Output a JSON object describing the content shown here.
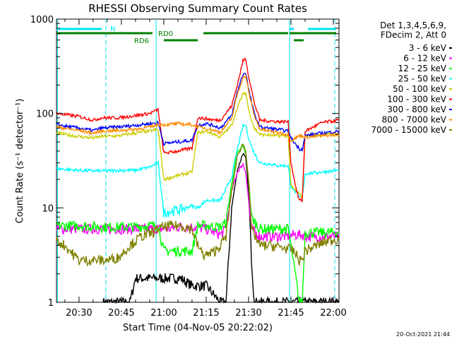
{
  "chart_data": {
    "type": "line",
    "title": "RHESSI Observing Summary Count Rates",
    "xlabel": "Start Time (04-Nov-05 20:22:02)",
    "ylabel": "Count Rate (s⁻¹ detector⁻¹)",
    "y_scale": "log",
    "ylim": [
      1,
      1000
    ],
    "xlim_minutes_after_2000": [
      22.03,
      122
    ],
    "x_ticks": [
      {
        "m": 30,
        "label": "20:30"
      },
      {
        "m": 45,
        "label": "20:45"
      },
      {
        "m": 60,
        "label": "21:00"
      },
      {
        "m": 75,
        "label": "21:15"
      },
      {
        "m": 90,
        "label": "21:30"
      },
      {
        "m": 105,
        "label": "21:45"
      },
      {
        "m": 120,
        "label": "22:00"
      }
    ],
    "y_ticks": [
      {
        "v": 1,
        "label": "1"
      },
      {
        "v": 10,
        "label": "10"
      },
      {
        "v": 100,
        "label": "100"
      },
      {
        "v": 1000,
        "label": "1000"
      }
    ],
    "legend_header": [
      "Det 1,3,4,5,6,9,",
      "FDecim 2, Att 0"
    ],
    "legend_placement": "right",
    "series": [
      {
        "name": "3 - 6 keV",
        "color": "#000000",
        "points": [
          [
            38.5,
            1
          ],
          [
            48,
            1
          ],
          [
            50,
            1.8
          ],
          [
            58,
            1.8
          ],
          [
            66,
            1.8
          ],
          [
            70,
            1.5
          ],
          [
            75,
            1.5
          ],
          [
            80,
            1
          ],
          [
            82,
            1
          ],
          [
            84,
            10
          ],
          [
            86,
            25
          ],
          [
            88,
            38
          ],
          [
            89,
            33
          ],
          [
            90,
            15
          ],
          [
            91,
            3
          ],
          [
            92,
            1
          ],
          [
            122,
            1
          ]
        ]
      },
      {
        "name": "6 - 12 keV",
        "color": "#ff00ff",
        "points": [
          [
            22,
            6
          ],
          [
            30,
            6
          ],
          [
            38,
            6
          ],
          [
            40,
            6
          ],
          [
            44,
            6
          ],
          [
            50,
            6
          ],
          [
            55,
            6
          ],
          [
            60,
            6
          ],
          [
            62,
            6
          ],
          [
            65,
            6.3
          ],
          [
            70,
            6.3
          ],
          [
            75,
            6
          ],
          [
            80,
            5.2
          ],
          [
            82,
            6
          ],
          [
            84,
            15
          ],
          [
            86,
            24
          ],
          [
            88,
            29
          ],
          [
            89,
            24
          ],
          [
            90,
            12
          ],
          [
            91,
            6
          ],
          [
            94,
            5
          ],
          [
            100,
            5
          ],
          [
            104,
            5
          ],
          [
            106,
            5.2
          ],
          [
            109,
            5.2
          ],
          [
            110,
            5
          ],
          [
            116,
            5
          ],
          [
            122,
            5
          ]
        ]
      },
      {
        "name": "12 - 25 keV",
        "color": "#00ff00",
        "points": [
          [
            22,
            6.5
          ],
          [
            30,
            6.5
          ],
          [
            38,
            6.3
          ],
          [
            44,
            6.3
          ],
          [
            50,
            6.3
          ],
          [
            55,
            6.5
          ],
          [
            58,
            6.5
          ],
          [
            60,
            3.5
          ],
          [
            64,
            3.5
          ],
          [
            70,
            3.5
          ],
          [
            72,
            6.5
          ],
          [
            75,
            6.5
          ],
          [
            80,
            6.3
          ],
          [
            82,
            7
          ],
          [
            84,
            18
          ],
          [
            86,
            38
          ],
          [
            88,
            45
          ],
          [
            89,
            38
          ],
          [
            90,
            20
          ],
          [
            91,
            8
          ],
          [
            94,
            6
          ],
          [
            100,
            6
          ],
          [
            104,
            6
          ],
          [
            105,
            4
          ],
          [
            108,
            1
          ],
          [
            109,
            1
          ],
          [
            110,
            5.5
          ],
          [
            116,
            5.5
          ],
          [
            122,
            5.5
          ]
        ]
      },
      {
        "name": "25 - 50 keV",
        "color": "#00ffff",
        "points": [
          [
            22,
            26
          ],
          [
            30,
            25
          ],
          [
            38,
            24.5
          ],
          [
            44,
            25
          ],
          [
            50,
            25
          ],
          [
            55,
            27
          ],
          [
            58,
            30
          ],
          [
            60,
            9
          ],
          [
            65,
            9.5
          ],
          [
            70,
            10.5
          ],
          [
            72,
            10
          ],
          [
            75,
            12
          ],
          [
            78,
            12
          ],
          [
            80,
            12
          ],
          [
            84,
            21
          ],
          [
            86,
            42
          ],
          [
            88,
            73
          ],
          [
            89,
            75
          ],
          [
            90,
            55
          ],
          [
            92,
            38
          ],
          [
            94,
            30
          ],
          [
            98,
            29
          ],
          [
            100,
            28
          ],
          [
            104,
            28
          ],
          [
            105,
            17
          ],
          [
            108,
            13
          ],
          [
            109,
            13
          ],
          [
            110,
            23
          ],
          [
            116,
            24
          ],
          [
            122,
            25
          ]
        ]
      },
      {
        "name": "50 - 100 keV",
        "color": "#cccc00",
        "points": [
          [
            22,
            62
          ],
          [
            30,
            57
          ],
          [
            35,
            55
          ],
          [
            38,
            57
          ],
          [
            44,
            58
          ],
          [
            50,
            62
          ],
          [
            55,
            65
          ],
          [
            58,
            68
          ],
          [
            60,
            20
          ],
          [
            65,
            22
          ],
          [
            70,
            24
          ],
          [
            72,
            62
          ],
          [
            75,
            65
          ],
          [
            78,
            60
          ],
          [
            80,
            56
          ],
          [
            84,
            75
          ],
          [
            86,
            115
          ],
          [
            88,
            160
          ],
          [
            89,
            165
          ],
          [
            90,
            110
          ],
          [
            92,
            70
          ],
          [
            94,
            60
          ],
          [
            100,
            58
          ],
          [
            104,
            58
          ],
          [
            105,
            17
          ],
          [
            108,
            14
          ],
          [
            109,
            13
          ],
          [
            110,
            58
          ],
          [
            116,
            60
          ],
          [
            122,
            60
          ]
        ]
      },
      {
        "name": "100 - 300 keV",
        "color": "#ff0000",
        "points": [
          [
            22,
            100
          ],
          [
            30,
            93
          ],
          [
            35,
            85
          ],
          [
            38,
            90
          ],
          [
            44,
            90
          ],
          [
            50,
            95
          ],
          [
            55,
            100
          ],
          [
            58,
            110
          ],
          [
            60,
            38
          ],
          [
            65,
            40
          ],
          [
            70,
            43
          ],
          [
            72,
            90
          ],
          [
            75,
            88
          ],
          [
            78,
            85
          ],
          [
            80,
            85
          ],
          [
            84,
            120
          ],
          [
            86,
            200
          ],
          [
            88,
            360
          ],
          [
            89,
            380
          ],
          [
            90,
            250
          ],
          [
            92,
            130
          ],
          [
            94,
            85
          ],
          [
            100,
            82
          ],
          [
            104,
            82
          ],
          [
            105,
            30
          ],
          [
            107,
            15
          ],
          [
            108,
            12
          ],
          [
            109,
            12
          ],
          [
            110,
            65
          ],
          [
            116,
            80
          ],
          [
            122,
            85
          ]
        ]
      },
      {
        "name": "300 - 800 keV",
        "color": "#0000ff",
        "points": [
          [
            22,
            76
          ],
          [
            30,
            70
          ],
          [
            35,
            66
          ],
          [
            38,
            70
          ],
          [
            44,
            72
          ],
          [
            50,
            75
          ],
          [
            55,
            78
          ],
          [
            58,
            80
          ],
          [
            60,
            48
          ],
          [
            65,
            50
          ],
          [
            70,
            52
          ],
          [
            72,
            75
          ],
          [
            75,
            78
          ],
          [
            78,
            74
          ],
          [
            80,
            70
          ],
          [
            84,
            95
          ],
          [
            86,
            170
          ],
          [
            88,
            260
          ],
          [
            89,
            270
          ],
          [
            90,
            180
          ],
          [
            92,
            100
          ],
          [
            94,
            72
          ],
          [
            100,
            68
          ],
          [
            104,
            65
          ],
          [
            105,
            55
          ],
          [
            108,
            42
          ],
          [
            109,
            42
          ],
          [
            110,
            58
          ],
          [
            116,
            62
          ],
          [
            122,
            65
          ]
        ]
      },
      {
        "name": "800 - 7000 keV",
        "color": "#ff8c00",
        "points": [
          [
            22,
            72
          ],
          [
            30,
            66
          ],
          [
            35,
            62
          ],
          [
            38,
            65
          ],
          [
            44,
            66
          ],
          [
            50,
            68
          ],
          [
            55,
            72
          ],
          [
            58,
            76
          ],
          [
            60,
            76
          ],
          [
            65,
            78
          ],
          [
            70,
            76
          ],
          [
            72,
            72
          ],
          [
            75,
            70
          ],
          [
            78,
            66
          ],
          [
            80,
            63
          ],
          [
            84,
            88
          ],
          [
            86,
            160
          ],
          [
            88,
            240
          ],
          [
            89,
            250
          ],
          [
            90,
            170
          ],
          [
            92,
            95
          ],
          [
            94,
            68
          ],
          [
            100,
            63
          ],
          [
            104,
            60
          ],
          [
            105,
            52
          ],
          [
            108,
            58
          ],
          [
            109,
            58
          ],
          [
            110,
            56
          ],
          [
            116,
            58
          ],
          [
            122,
            60
          ]
        ]
      },
      {
        "name": "7000 - 15000 keV",
        "color": "#808000",
        "points": [
          [
            22,
            4.5
          ],
          [
            25,
            4
          ],
          [
            28,
            3.2
          ],
          [
            30,
            2.8
          ],
          [
            35,
            2.8
          ],
          [
            40,
            2.8
          ],
          [
            44,
            3
          ],
          [
            48,
            4
          ],
          [
            52,
            5
          ],
          [
            55,
            5.3
          ],
          [
            58,
            6
          ],
          [
            62,
            6.5
          ],
          [
            66,
            6.5
          ],
          [
            70,
            6
          ],
          [
            72,
            4
          ],
          [
            74,
            3.2
          ],
          [
            76,
            3.2
          ],
          [
            78,
            3.5
          ],
          [
            80,
            4
          ],
          [
            82,
            5
          ],
          [
            84,
            15
          ],
          [
            86,
            35
          ],
          [
            88,
            48
          ],
          [
            89,
            40
          ],
          [
            90,
            20
          ],
          [
            91,
            6
          ],
          [
            94,
            4
          ],
          [
            98,
            4
          ],
          [
            102,
            3.8
          ],
          [
            104,
            3.7
          ],
          [
            106,
            3.5
          ],
          [
            108,
            2.8
          ],
          [
            109,
            2.8
          ],
          [
            110,
            3.5
          ],
          [
            114,
            4
          ],
          [
            118,
            4.5
          ],
          [
            122,
            4.7
          ]
        ]
      }
    ],
    "attenuator_labels": {
      "n": "N",
      "rd0": "RD0",
      "rd6": "RD6"
    }
  },
  "footer_date": "20-Oct-2021 21:44"
}
